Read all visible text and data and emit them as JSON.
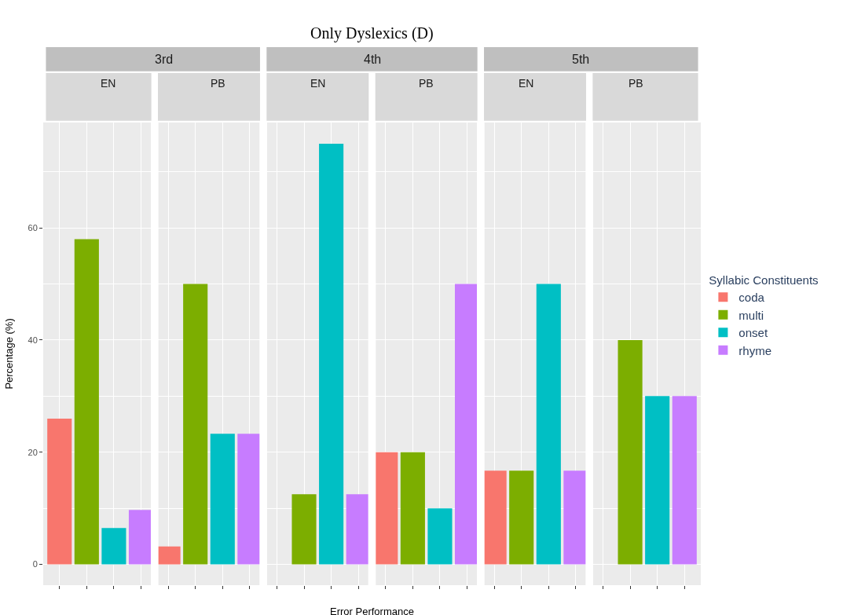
{
  "chart_data": {
    "type": "bar",
    "title": "Only Dyslexics (D)",
    "annotations": [
      "3rd",
      "4th",
      "5th",
      "EN",
      "PB",
      "EN",
      "PB",
      "EN",
      "PB"
    ],
    "xlabel": "Error Performance",
    "ylabel": "Percentage (%)",
    "legend_title": "Syllabic Constituents",
    "legend": "right",
    "categories": [
      null,
      null,
      null,
      null,
      null,
      null,
      null,
      null,
      null,
      null,
      null,
      null,
      null,
      null,
      null,
      null,
      null,
      null,
      null,
      null,
      null,
      null,
      null,
      null
    ],
    "ylim": [
      -3.7,
      78.8
    ],
    "yticks": [
      0,
      20,
      40,
      60
    ],
    "grid": true,
    "series": [
      {
        "name": "coda",
        "color": "#f8766d",
        "values": [
          26,
          null,
          null,
          null,
          3.2,
          null,
          null,
          null,
          0,
          null,
          null,
          null,
          20,
          null,
          null,
          null,
          16.7,
          null,
          null,
          null,
          0,
          null,
          null,
          null
        ]
      },
      {
        "name": "multi",
        "color": "#7cae00",
        "values": [
          null,
          58,
          null,
          null,
          null,
          50,
          null,
          null,
          null,
          12.5,
          null,
          null,
          null,
          20,
          null,
          null,
          null,
          16.7,
          null,
          null,
          null,
          40,
          null,
          null
        ]
      },
      {
        "name": "onset",
        "color": "#00bfc4",
        "values": [
          null,
          null,
          6.5,
          null,
          null,
          null,
          23.3,
          null,
          null,
          null,
          75,
          null,
          null,
          null,
          10,
          null,
          null,
          null,
          50,
          null,
          null,
          null,
          30,
          null
        ]
      },
      {
        "name": "rhyme",
        "color": "#c77cff",
        "values": [
          null,
          null,
          null,
          9.7,
          null,
          null,
          null,
          23.3,
          null,
          null,
          null,
          12.5,
          null,
          null,
          null,
          50,
          null,
          null,
          null,
          16.7,
          null,
          null,
          null,
          30
        ]
      }
    ]
  }
}
